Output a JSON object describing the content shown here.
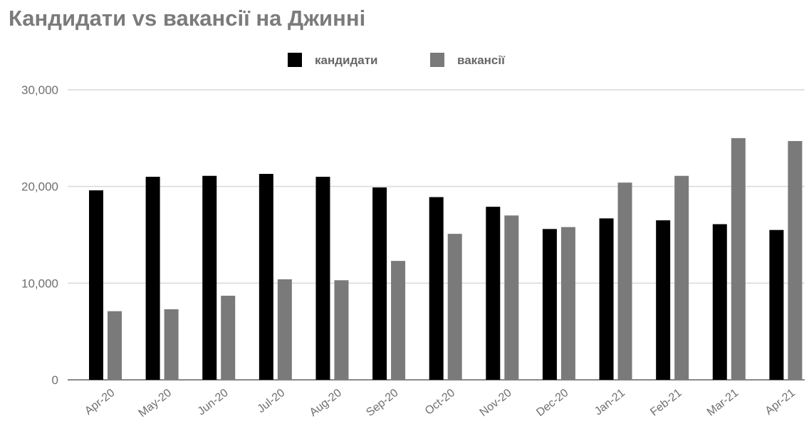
{
  "chart_data": {
    "type": "bar",
    "title": "Кандидати vs вакансії на Джинні",
    "categories": [
      "Apr-20",
      "May-20",
      "Jun-20",
      "Jul-20",
      "Aug-20",
      "Sep-20",
      "Oct-20",
      "Nov-20",
      "Dec-20",
      "Jan-21",
      "Feb-21",
      "Mar-21",
      "Apr-21"
    ],
    "series": [
      {
        "name": "кандидати",
        "color": "#000000",
        "values": [
          19600,
          21000,
          21100,
          21300,
          21000,
          19900,
          18900,
          17900,
          15600,
          16700,
          16500,
          16100,
          15500
        ]
      },
      {
        "name": "вакансії",
        "color": "#7a7a7a",
        "values": [
          7100,
          7300,
          8700,
          10400,
          10300,
          12300,
          15100,
          17000,
          15800,
          20400,
          21100,
          25000,
          24700
        ]
      }
    ],
    "y_ticks": [
      "0",
      "10,000",
      "20,000",
      "30,000"
    ],
    "y_tick_values": [
      0,
      10000,
      20000,
      30000
    ],
    "ylim": [
      0,
      30000
    ],
    "grid": true,
    "legend_position": "top-center"
  }
}
